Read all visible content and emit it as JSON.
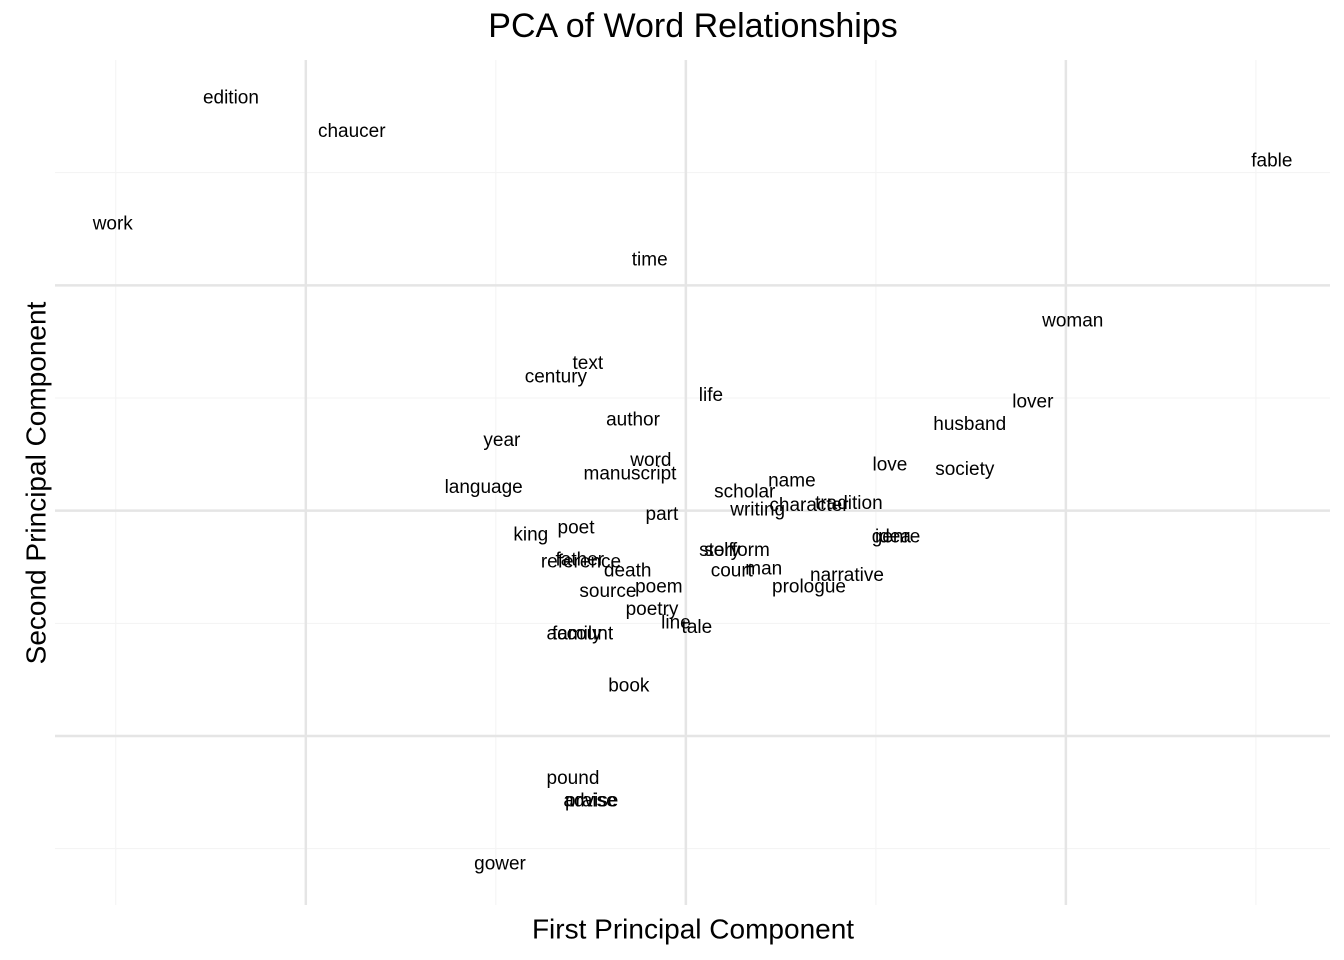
{
  "chart_data": {
    "type": "text-scatter",
    "title": "PCA of Word Relationships",
    "x_label": "First Principal Component",
    "y_label": "Second Principal Component",
    "words": [
      "edition",
      "chaucer",
      "fable",
      "work",
      "time",
      "woman",
      "text",
      "century",
      "life",
      "lover",
      "author",
      "husband",
      "year",
      "word",
      "love",
      "society",
      "manuscript",
      "name",
      "language",
      "scholar",
      "tradition",
      "character",
      "writing",
      "part",
      "poet",
      "king",
      "genre",
      "idea",
      "form",
      "story",
      "self",
      "reference",
      "father",
      "death",
      "court",
      "man",
      "narrative",
      "poem",
      "prologue",
      "source",
      "poetry",
      "line",
      "tale",
      "account",
      "family",
      "book",
      "pound",
      "advise",
      "praise",
      "gower"
    ],
    "x": [
      -1.197,
      -0.879,
      1.542,
      -1.508,
      -0.095,
      1.018,
      -0.258,
      -0.342,
      0.066,
      0.913,
      -0.139,
      0.747,
      -0.484,
      -0.092,
      0.537,
      0.734,
      -0.147,
      0.279,
      -0.532,
      0.155,
      0.429,
      0.324,
      0.189,
      -0.063,
      -0.289,
      -0.408,
      0.553,
      0.545,
      0.171,
      0.089,
      0.087,
      -0.276,
      -0.279,
      -0.153,
      0.121,
      0.205,
      0.424,
      -0.071,
      0.324,
      -0.205,
      -0.089,
      -0.026,
      0.029,
      -0.279,
      -0.287,
      -0.15,
      -0.297,
      -0.25,
      -0.25,
      -0.489
    ],
    "y": [
      1.83,
      1.68,
      1.55,
      1.27,
      1.11,
      0.84,
      0.65,
      0.59,
      0.51,
      0.48,
      0.4,
      0.38,
      0.31,
      0.22,
      0.2,
      0.18,
      0.16,
      0.13,
      0.1,
      0.08,
      0.03,
      0.02,
      0.0,
      -0.02,
      -0.08,
      -0.11,
      -0.12,
      -0.12,
      -0.18,
      -0.18,
      -0.18,
      -0.23,
      -0.22,
      -0.27,
      -0.27,
      -0.26,
      -0.29,
      -0.34,
      -0.34,
      -0.36,
      -0.44,
      -0.5,
      -0.52,
      -0.55,
      -0.55,
      -0.78,
      -1.19,
      -1.29,
      -1.29,
      -1.57
    ],
    "color": "#000000",
    "xlim": [
      -1.66,
      1.695
    ],
    "ylim": [
      -1.75,
      2.0
    ],
    "xticks": [
      -1,
      0,
      1
    ],
    "yticks": [
      -1,
      0,
      1
    ],
    "xticks_minor": [
      -1.5,
      -0.5,
      0.5,
      1.5
    ],
    "yticks_minor": [
      -1.5,
      -0.5,
      0.5,
      1.5
    ],
    "grid": true
  }
}
